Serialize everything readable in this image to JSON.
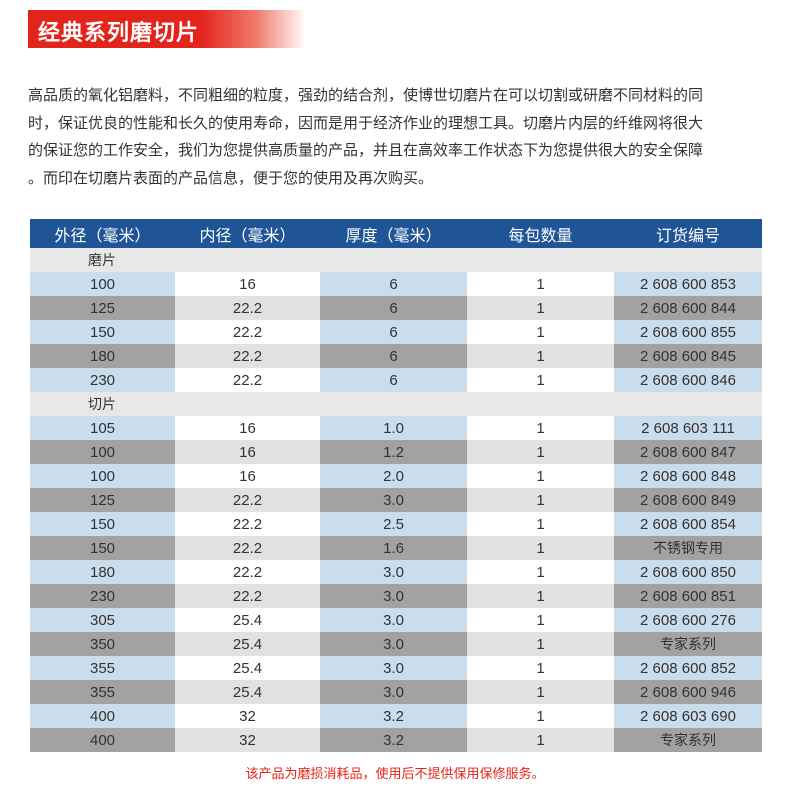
{
  "banner": {
    "title": "经典系列磨切片"
  },
  "intro": {
    "lines": [
      "高品质的氧化铝磨料，不同粗细的粒度，强劲的结合剂，使博世切磨片在可以切割或研磨不同材料的同",
      "时，保证优良的性能和长久的使用寿命，因而是用于经济作业的理想工具。切磨片内层的纤维网将很大",
      "的保证您的工作安全，我们为您提供高质量的产品，并且在高效率工作状态下为您提供很大的安全保障",
      "。而印在切磨片表面的产品信息，便于您的使用及再次购买。"
    ]
  },
  "table": {
    "headers": [
      "外径（毫米）",
      "内径（毫米）",
      "厚度（毫米）",
      "每包数量",
      "订货编号"
    ],
    "sections": [
      {
        "label": "磨片",
        "rows": [
          [
            "100",
            "16",
            "6",
            "1",
            "2 608 600 853"
          ],
          [
            "125",
            "22.2",
            "6",
            "1",
            "2 608 600 844"
          ],
          [
            "150",
            "22.2",
            "6",
            "1",
            "2 608 600 855"
          ],
          [
            "180",
            "22.2",
            "6",
            "1",
            "2 608 600 845"
          ],
          [
            "230",
            "22.2",
            "6",
            "1",
            "2 608 600 846"
          ]
        ]
      },
      {
        "label": "切片",
        "rows": [
          [
            "105",
            "16",
            "1.0",
            "1",
            "2 608 603 111"
          ],
          [
            "100",
            "16",
            "1.2",
            "1",
            "2 608 600 847"
          ],
          [
            "100",
            "16",
            "2.0",
            "1",
            "2 608 600 848"
          ],
          [
            "125",
            "22.2",
            "3.0",
            "1",
            "2 608 600 849"
          ],
          [
            "150",
            "22.2",
            "2.5",
            "1",
            "2 608 600 854"
          ],
          [
            "150",
            "22.2",
            "1.6",
            "1",
            "不锈钢专用"
          ],
          [
            "180",
            "22.2",
            "3.0",
            "1",
            "2 608 600 850"
          ],
          [
            "230",
            "22.2",
            "3.0",
            "1",
            "2 608 600 851"
          ],
          [
            "305",
            "25.4",
            "3.0",
            "1",
            "2 608 600 276"
          ],
          [
            "350",
            "25.4",
            "3.0",
            "1",
            "专家系列"
          ],
          [
            "355",
            "25.4",
            "3.0",
            "1",
            "2 608 600 852"
          ],
          [
            "355",
            "25.4",
            "3.0",
            "1",
            "2 608 600 946"
          ],
          [
            "400",
            "32",
            "3.2",
            "1",
            "2 608 603 690"
          ],
          [
            "400",
            "32",
            "3.2",
            "1",
            "专家系列"
          ]
        ]
      }
    ]
  },
  "footnote": "该产品为磨损消耗品，使用后不提供保用保修服务。",
  "colors": {
    "accent": "#e3241b",
    "header": "#1f5597",
    "row_light": "#c9dded",
    "row_dark": "#a2a2a2"
  }
}
